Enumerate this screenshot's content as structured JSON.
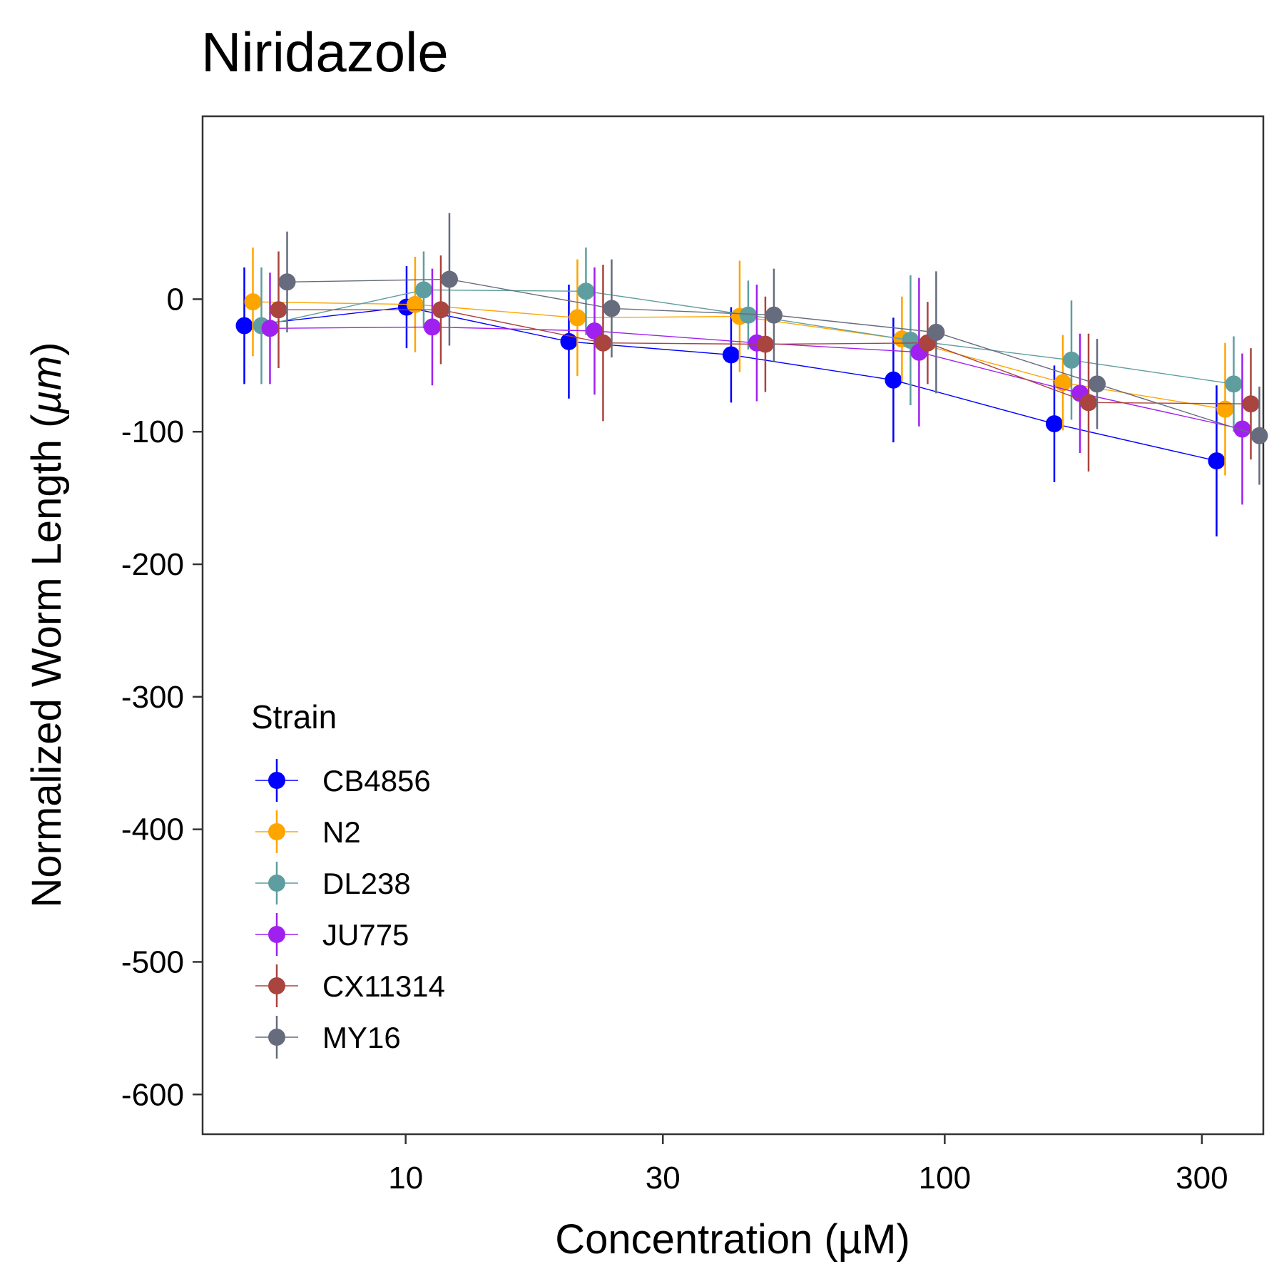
{
  "chart_data": {
    "type": "line",
    "title": "Niridazole",
    "xlabel": "Concentration (µM)",
    "ylabel_main": "Normalized Worm Length (",
    "ylabel_unit": "µm",
    "ylabel_close": ")",
    "x_scale": "log",
    "x_ticks": [
      10,
      30,
      100,
      300
    ],
    "x_tick_labels": [
      "10",
      "30",
      "100",
      "300"
    ],
    "xlim": [
      4.2,
      390
    ],
    "ylim": [
      -630,
      138
    ],
    "y_ticks": [
      0,
      -100,
      -200,
      -300,
      -400,
      -500,
      -600
    ],
    "y_tick_labels": [
      "0",
      "-100",
      "-200",
      "-300",
      "-400",
      "-500",
      "-600"
    ],
    "grid": false,
    "legend": {
      "title": "Strain",
      "placement": "bottom-left inside"
    },
    "x": [
      5.5,
      11,
      22,
      44,
      88,
      175,
      350
    ],
    "series": [
      {
        "name": "CB4856",
        "color": "#0000FF",
        "values": [
          -20,
          -6,
          -32,
          -42,
          -61,
          -94,
          -122
        ],
        "err": [
          44,
          31,
          43,
          36,
          47,
          44,
          57
        ]
      },
      {
        "name": "N2",
        "color": "#FFA500",
        "values": [
          -2,
          -4,
          -14,
          -13,
          -30,
          -63,
          -83
        ],
        "err": [
          41,
          36,
          44,
          42,
          32,
          36,
          50
        ]
      },
      {
        "name": "DL238",
        "color": "#5F9EA0",
        "values": [
          -20,
          7,
          6,
          -12,
          -31,
          -46,
          -64
        ],
        "err": [
          44,
          29,
          33,
          26,
          49,
          45,
          36
        ]
      },
      {
        "name": "JU775",
        "color": "#A020F0",
        "values": [
          -22,
          -21,
          -24,
          -33,
          -40,
          -71,
          -98
        ],
        "err": [
          42,
          44,
          48,
          44,
          56,
          45,
          57
        ]
      },
      {
        "name": "CX11314",
        "color": "#A9443E",
        "values": [
          -8,
          -8,
          -33,
          -34,
          -33,
          -78,
          -79
        ],
        "err": [
          44,
          41,
          59,
          36,
          31,
          52,
          42
        ]
      },
      {
        "name": "MY16",
        "color": "#666B7D",
        "values": [
          13,
          15,
          -7,
          -12,
          -25,
          -64,
          -103
        ],
        "err": [
          38,
          50,
          37,
          35,
          46,
          34,
          37
        ]
      }
    ]
  }
}
